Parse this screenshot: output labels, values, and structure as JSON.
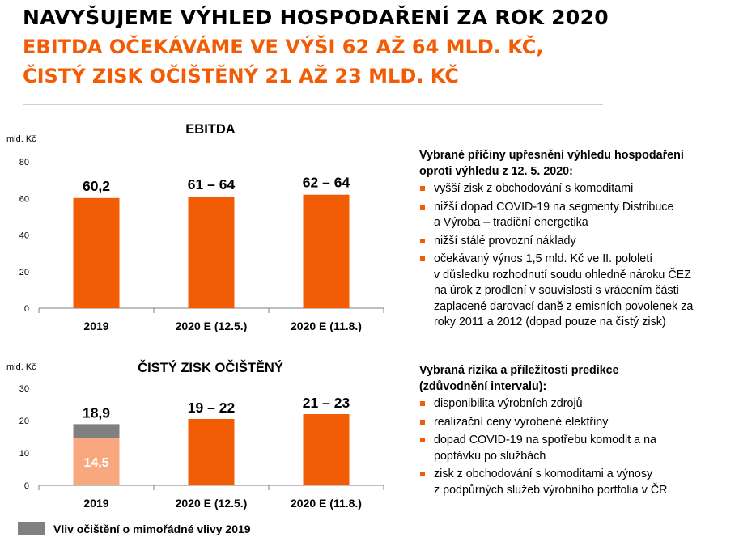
{
  "header": {
    "title": "NAVYŠUJEME VÝHLED HOSPODAŘENÍ ZA ROK 2020",
    "subtitle_line1": "EBITDA OČEKÁVÁME VE VÝŠI 62 AŽ 64 MLD. KČ,",
    "subtitle_line2": "ČISTÝ ZISK OČIŠTĚNÝ 21 AŽ 23 MLD. KČ"
  },
  "colors": {
    "accent": "#f25c05",
    "light_accent": "#f9a77f",
    "adjustment": "#808080",
    "axis": "#7f7f7f"
  },
  "chart_data": [
    {
      "type": "bar",
      "title": "EBITDA",
      "unit_label": "mld. Kč",
      "ylim": [
        0,
        80
      ],
      "yticks": [
        0,
        20,
        40,
        60,
        80
      ],
      "categories": [
        "2019",
        "2020 E (12.5.)",
        "2020 E (11.8.)"
      ],
      "values": [
        60.2,
        61,
        62
      ],
      "value_labels": [
        "60,2",
        "61 – 64",
        "62 – 64"
      ],
      "grid": false,
      "legend": "none"
    },
    {
      "type": "bar",
      "stacked": true,
      "title": "ČISTÝ ZISK OČIŠTĚNÝ",
      "unit_label": "mld. Kč",
      "ylim": [
        0,
        30
      ],
      "yticks": [
        0,
        10,
        20,
        30
      ],
      "categories": [
        "2019",
        "2020 E (12.5.)",
        "2020 E (11.8.)"
      ],
      "series": [
        {
          "values": [
            14.5,
            20.5,
            22
          ],
          "inner_labels": [
            "14,5",
            "",
            ""
          ]
        },
        {
          "name": "Vliv očištění o mimořádné vlivy 2019",
          "values": [
            4.4,
            0,
            0
          ]
        }
      ],
      "total_labels": [
        "18,9",
        "19 – 22",
        "21 – 23"
      ],
      "grid": false,
      "legend": "bottom-left"
    }
  ],
  "legend": {
    "label": "Vliv očištění o mimořádné vlivy 2019"
  },
  "panel1": {
    "heading_line1": "Vybrané příčiny upřesnění výhledu hospodaření",
    "heading_line2": "oproti výhledu z 12. 5. 2020:",
    "items": [
      [
        "vyšší zisk z obchodování s komoditami"
      ],
      [
        "nižší dopad COVID-19 na segmenty Distribuce",
        "a Výroba – tradiční energetika"
      ],
      [
        "nižší stálé provozní náklady"
      ],
      [
        "očekávaný výnos 1,5 mld. Kč ve II. pololetí",
        "v důsledku rozhodnutí soudu ohledně nároku ČEZ",
        "na úrok z prodlení v souvislosti s vrácením části",
        "zaplacené darovací daně z emisních povolenek za",
        "roky 2011 a 2012 (dopad pouze na čistý zisk)"
      ]
    ]
  },
  "panel2": {
    "heading_line1": "Vybraná rizika a příležitosti predikce",
    "heading_line2": "(zdůvodnění intervalu):",
    "items": [
      [
        "disponibilita výrobních zdrojů"
      ],
      [
        "realizační ceny vyrobené elektřiny"
      ],
      [
        "dopad COVID-19 na spotřebu komodit a na",
        "poptávku po službách"
      ],
      [
        "zisk z obchodování s komoditami a výnosy",
        "z podpůrných služeb výrobního portfolia v ČR"
      ]
    ]
  }
}
